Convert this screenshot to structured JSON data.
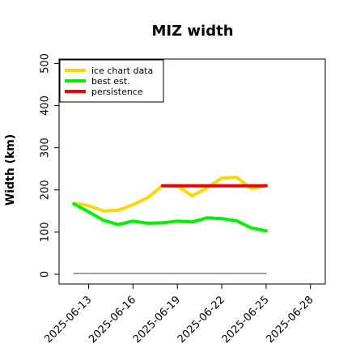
{
  "chart_data": {
    "type": "line",
    "title": "MIZ width",
    "xlabel": "",
    "ylabel": "Width (km)",
    "ylim": [
      0,
      520
    ],
    "yticks": [
      0,
      100,
      200,
      300,
      400,
      500
    ],
    "xticks": [
      "2025-06-13",
      "2025-06-16",
      "2025-06-19",
      "2025-06-22",
      "2025-06-25",
      "2025-06-28"
    ],
    "xlim": [
      "2025-06-11",
      "2025-06-29"
    ],
    "legend_position": "top-left",
    "grid": false,
    "series": [
      {
        "name": "ice chart data",
        "color": "#FFD700",
        "points": [
          {
            "x": "2025-06-12",
            "y": 168
          },
          {
            "x": "2025-06-13",
            "y": 163
          },
          {
            "x": "2025-06-14",
            "y": 150
          },
          {
            "x": "2025-06-15",
            "y": 152
          },
          {
            "x": "2025-06-16",
            "y": 165
          },
          {
            "x": "2025-06-17",
            "y": 182
          },
          {
            "x": "2025-06-18",
            "y": 210
          },
          {
            "x": "2025-06-19",
            "y": 210
          },
          {
            "x": "2025-06-20",
            "y": 186
          },
          {
            "x": "2025-06-21",
            "y": 205
          },
          {
            "x": "2025-06-22",
            "y": 228
          },
          {
            "x": "2025-06-23",
            "y": 230
          },
          {
            "x": "2025-06-24",
            "y": 203
          },
          {
            "x": "2025-06-25",
            "y": 211
          }
        ]
      },
      {
        "name": "best est.",
        "color": "#00EE00",
        "points": [
          {
            "x": "2025-06-12",
            "y": 167
          },
          {
            "x": "2025-06-13",
            "y": 148
          },
          {
            "x": "2025-06-14",
            "y": 128
          },
          {
            "x": "2025-06-15",
            "y": 118
          },
          {
            "x": "2025-06-16",
            "y": 126
          },
          {
            "x": "2025-06-17",
            "y": 121
          },
          {
            "x": "2025-06-18",
            "y": 122
          },
          {
            "x": "2025-06-19",
            "y": 126
          },
          {
            "x": "2025-06-20",
            "y": 124
          },
          {
            "x": "2025-06-21",
            "y": 134
          },
          {
            "x": "2025-06-22",
            "y": 132
          },
          {
            "x": "2025-06-23",
            "y": 127
          },
          {
            "x": "2025-06-24",
            "y": 110
          },
          {
            "x": "2025-06-25",
            "y": 103
          }
        ]
      },
      {
        "name": "persistence",
        "color": "#EE0000",
        "points": [
          {
            "x": "2025-06-18",
            "y": 210
          },
          {
            "x": "2025-06-25",
            "y": 210
          }
        ]
      },
      {
        "name": "",
        "color": "#808080",
        "points": [
          {
            "x": "2025-06-12",
            "y": 2
          },
          {
            "x": "2025-06-25",
            "y": 2
          }
        ]
      }
    ]
  }
}
